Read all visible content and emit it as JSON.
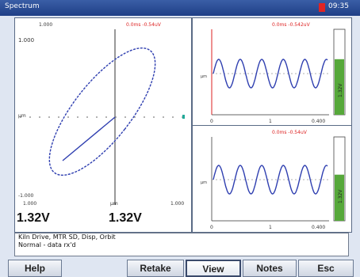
{
  "window": {
    "title": "Spectrum",
    "time": "09:35"
  },
  "xy_plot": {
    "top_left_label": "1.000",
    "top_axis_label": "1.000",
    "cursor_readout": "0.0ms -0.54uV",
    "bottom_left_label": "-1.000",
    "bottom_axis_left": "1.000",
    "bottom_axis_mid": "μm",
    "bottom_axis_right": "1.000",
    "x_value": "1.32V",
    "y_value": "1.32V",
    "color_line": "#2f3fb0"
  },
  "wave_top": {
    "readout": "0.0ms -0.542uV",
    "x_start": "0",
    "x_mid": "1",
    "x_end": "0.400",
    "bar_label": "1.32V",
    "bar_fill": 0.65
  },
  "wave_bottom": {
    "readout": "0.0ms -0.54uV",
    "x_start": "0",
    "x_mid": "1",
    "x_end": "0.400",
    "bar_label": "1.32V",
    "bar_fill": 0.55
  },
  "status": {
    "line1": "Kiln Drive, MTR SD, Disp, Orbit",
    "line2": "Normal - data rx'd"
  },
  "buttons": {
    "help": "Help",
    "retake": "Retake",
    "view": "View",
    "notes": "Notes",
    "esc": "Esc"
  }
}
